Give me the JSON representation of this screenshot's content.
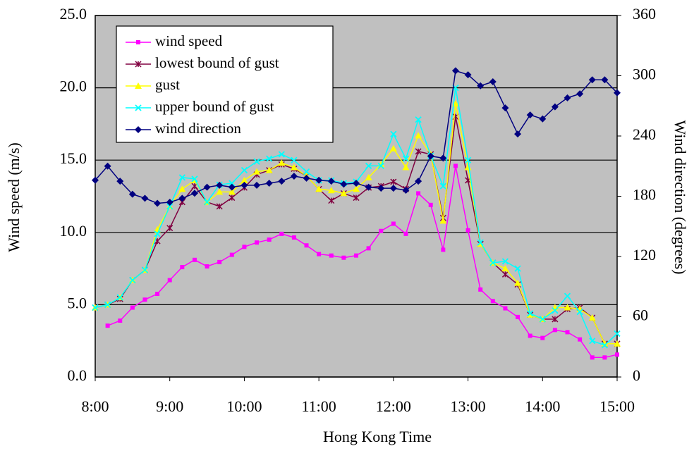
{
  "chart_data": {
    "type": "line",
    "x_label": "Hong Kong Time",
    "y_label": "Wind speed (m/s)",
    "y2_label": "Wind direction (degrees)",
    "x": [
      480,
      490,
      500,
      510,
      520,
      530,
      540,
      550,
      560,
      570,
      580,
      590,
      600,
      610,
      620,
      630,
      640,
      650,
      660,
      670,
      680,
      690,
      700,
      710,
      720,
      730,
      740,
      750,
      760,
      770,
      780,
      790,
      800,
      810,
      820,
      830,
      840,
      850,
      860,
      870,
      880,
      890,
      900
    ],
    "xlim": [
      480,
      900
    ],
    "xticks": [
      {
        "value": 480,
        "label": "8:00"
      },
      {
        "value": 540,
        "label": "9:00"
      },
      {
        "value": 600,
        "label": "10:00"
      },
      {
        "value": 660,
        "label": "11:00"
      },
      {
        "value": 720,
        "label": "12:00"
      },
      {
        "value": 780,
        "label": "13:00"
      },
      {
        "value": 840,
        "label": "14:00"
      },
      {
        "value": 900,
        "label": "15:00"
      }
    ],
    "ylim": [
      0,
      25
    ],
    "yticks": [
      {
        "value": 0,
        "label": "0.0"
      },
      {
        "value": 5,
        "label": "5.0"
      },
      {
        "value": 10,
        "label": "10.0"
      },
      {
        "value": 15,
        "label": "15.0"
      },
      {
        "value": 20,
        "label": "20.0"
      },
      {
        "value": 25,
        "label": "25.0"
      }
    ],
    "y2lim": [
      0,
      360
    ],
    "y2ticks": [
      0,
      60,
      120,
      180,
      240,
      300,
      360
    ],
    "grid": true,
    "background": "#c0c0c0",
    "series": [
      {
        "name": "wind speed",
        "color": "#ff00ff",
        "marker": "square",
        "values": [
          null,
          3.55,
          3.9,
          4.8,
          5.35,
          5.75,
          6.7,
          7.6,
          8.1,
          7.65,
          7.95,
          8.45,
          9.0,
          9.3,
          9.5,
          9.9,
          9.65,
          9.1,
          8.5,
          8.4,
          8.25,
          8.4,
          8.9,
          10.1,
          10.6,
          9.9,
          12.7,
          11.9,
          8.8,
          14.6,
          10.15,
          6.05,
          5.25,
          4.75,
          4.15,
          2.85,
          2.7,
          3.25,
          3.1,
          2.6,
          1.35,
          1.35,
          1.55
        ]
      },
      {
        "name": "lowest bound of gust",
        "color": "#800040",
        "marker": "star",
        "values": [
          4.8,
          5.0,
          5.4,
          6.7,
          7.4,
          9.4,
          10.3,
          12.1,
          13.2,
          12.1,
          11.8,
          12.4,
          13.1,
          14.0,
          14.3,
          14.7,
          14.4,
          13.9,
          13.0,
          12.2,
          12.7,
          12.4,
          13.1,
          13.2,
          13.5,
          13.0,
          15.6,
          15.4,
          11.0,
          18.0,
          13.6,
          9.2,
          7.9,
          7.1,
          6.4,
          4.3,
          4.0,
          4.0,
          4.7,
          4.8,
          4.1,
          2.3,
          2.3
        ]
      },
      {
        "name": "gust",
        "color": "#ffff00",
        "marker": "triangle",
        "values": [
          4.8,
          5.0,
          5.5,
          6.7,
          7.4,
          10.2,
          11.8,
          13.0,
          13.6,
          12.1,
          12.8,
          12.8,
          13.6,
          14.2,
          14.3,
          14.8,
          14.5,
          13.9,
          13.0,
          12.9,
          12.7,
          13.0,
          13.8,
          14.7,
          15.8,
          14.5,
          16.7,
          15.4,
          10.8,
          18.9,
          14.5,
          9.2,
          7.9,
          7.5,
          6.5,
          4.3,
          4.0,
          4.8,
          4.8,
          4.7,
          4.1,
          2.3,
          2.3
        ]
      },
      {
        "name": "upper bound of gust",
        "color": "#00ffff",
        "marker": "cross",
        "values": [
          4.8,
          5.0,
          5.5,
          6.7,
          7.4,
          9.9,
          11.8,
          13.8,
          13.7,
          12.1,
          13.3,
          13.4,
          14.3,
          14.9,
          15.1,
          15.4,
          15.0,
          14.2,
          13.6,
          13.6,
          13.4,
          13.5,
          14.6,
          14.6,
          16.8,
          15.1,
          17.8,
          15.3,
          13.2,
          20.0,
          15.0,
          9.3,
          7.9,
          8.0,
          7.5,
          4.4,
          4.0,
          4.6,
          5.6,
          4.5,
          2.5,
          2.2,
          3.0
        ]
      },
      {
        "name": "wind direction",
        "color": "#000080",
        "marker": "diamond",
        "axis": "y2",
        "values": [
          196,
          210,
          195,
          182,
          178,
          173,
          174,
          178,
          183,
          189,
          191,
          189,
          191,
          191,
          193,
          195,
          200,
          198,
          196,
          195,
          192,
          193,
          189,
          188,
          188,
          186,
          195,
          220,
          218,
          305,
          301,
          290,
          294,
          268,
          242,
          261,
          257,
          269,
          278,
          282,
          296,
          296,
          283
        ]
      }
    ]
  }
}
